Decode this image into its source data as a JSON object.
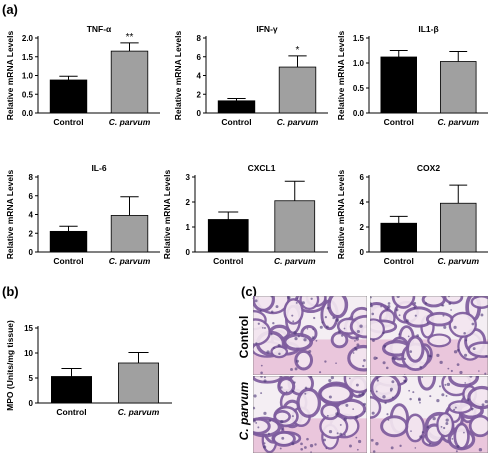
{
  "panels": {
    "a": "(a)",
    "b": "(b)",
    "c": "(c)"
  },
  "colors": {
    "control": "#000000",
    "treated": "#a0a0a0",
    "tissue_pink": "#e7bcd6",
    "tissue_purple": "#7e5c9e",
    "tissue_background": "#f4eef3"
  },
  "histology": {
    "row_labels": [
      "Control",
      "C. parvum"
    ],
    "images": [
      {
        "row": "Control",
        "col": 1
      },
      {
        "row": "Control",
        "col": 2
      },
      {
        "row": "C. parvum",
        "col": 1
      },
      {
        "row": "C. parvum",
        "col": 2
      }
    ]
  },
  "chart_data": [
    {
      "type": "bar",
      "panel": "a",
      "title": "TNF-α",
      "ylabel": "Relative mRNA Levels",
      "categories": [
        "Control",
        "C. parvum"
      ],
      "values": [
        0.88,
        1.65
      ],
      "errors": [
        0.1,
        0.22
      ],
      "significance": [
        "",
        "**"
      ],
      "ylim": [
        0,
        2.0
      ],
      "yticks": [
        "0.0",
        "0.5",
        "1.0",
        "1.5",
        "2.0"
      ]
    },
    {
      "type": "bar",
      "panel": "a",
      "title": "IFN-γ",
      "ylabel": "Relative mRNA Levels",
      "categories": [
        "Control",
        "C. parvum"
      ],
      "values": [
        1.3,
        4.9
      ],
      "errors": [
        0.25,
        1.2
      ],
      "significance": [
        "",
        "*"
      ],
      "ylim": [
        0,
        8
      ],
      "yticks": [
        "0",
        "2",
        "4",
        "6",
        "8"
      ]
    },
    {
      "type": "bar",
      "panel": "a",
      "title": "IL1-β",
      "ylabel": "Relative mRNA Levels",
      "categories": [
        "Control",
        "C. parvum"
      ],
      "values": [
        1.12,
        1.03
      ],
      "errors": [
        0.13,
        0.2
      ],
      "significance": [
        "",
        ""
      ],
      "ylim": [
        0,
        1.5
      ],
      "yticks": [
        "0.0",
        "0.5",
        "1.0",
        "1.5"
      ]
    },
    {
      "type": "bar",
      "panel": "a",
      "title": "IL-6",
      "ylabel": "Relative mRNA Levels",
      "categories": [
        "Control",
        "C. parvum"
      ],
      "values": [
        2.2,
        3.9
      ],
      "errors": [
        0.55,
        2.0
      ],
      "significance": [
        "",
        ""
      ],
      "ylim": [
        0,
        8
      ],
      "yticks": [
        "0",
        "2",
        "4",
        "6",
        "8"
      ]
    },
    {
      "type": "bar",
      "panel": "a",
      "title": "CXCL1",
      "ylabel": "Relative mRNA Levels",
      "categories": [
        "Control",
        "C. parvum"
      ],
      "values": [
        1.3,
        2.05
      ],
      "errors": [
        0.3,
        0.78
      ],
      "significance": [
        "",
        ""
      ],
      "ylim": [
        0,
        3
      ],
      "yticks": [
        "0",
        "1",
        "2",
        "3"
      ]
    },
    {
      "type": "bar",
      "panel": "a",
      "title": "COX2",
      "ylabel": "Relative mRNA Levels",
      "categories": [
        "Control",
        "C. parvum"
      ],
      "values": [
        2.3,
        3.9
      ],
      "errors": [
        0.55,
        1.45
      ],
      "significance": [
        "",
        ""
      ],
      "ylim": [
        0,
        6
      ],
      "yticks": [
        "0",
        "2",
        "4",
        "6"
      ]
    },
    {
      "type": "bar",
      "panel": "b",
      "title": "",
      "ylabel": "MPO (Units/mg tissue)",
      "categories": [
        "Control",
        "C. parvum"
      ],
      "values": [
        5.3,
        8.0
      ],
      "errors": [
        1.6,
        2.1
      ],
      "significance": [
        "",
        ""
      ],
      "ylim": [
        0,
        15
      ],
      "yticks": [
        "0",
        "5",
        "10",
        "15"
      ]
    }
  ]
}
